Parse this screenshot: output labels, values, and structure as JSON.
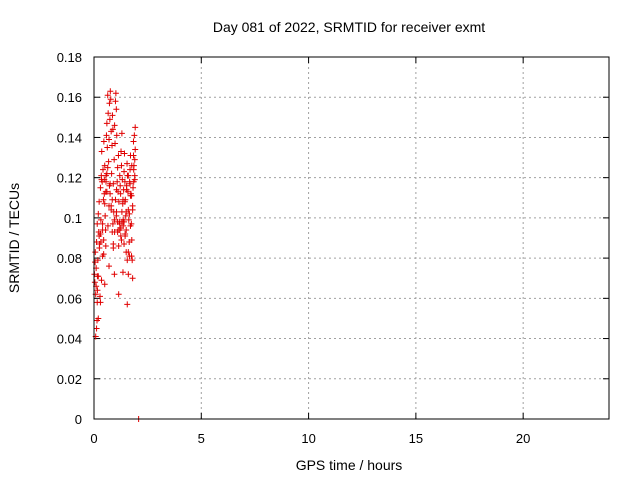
{
  "chart_data": {
    "type": "scatter",
    "title": "Day 081 of 2022, SRMTID for receiver exmt",
    "xlabel": "GPS time / hours",
    "ylabel": "SRMTID / TECUs",
    "xlim": [
      0,
      24
    ],
    "ylim": [
      0,
      0.18
    ],
    "xticks": [
      0,
      5,
      10,
      15,
      20
    ],
    "xtick_labels": [
      "0",
      "5",
      "10",
      "15",
      "20"
    ],
    "yticks": [
      0,
      0.02,
      0.04,
      0.06,
      0.08,
      0.1,
      0.12,
      0.14,
      0.16,
      0.18
    ],
    "ytick_labels": [
      "0",
      "0.02",
      "0.04",
      "0.06",
      "0.08",
      "0.1",
      "0.12",
      "0.14",
      "0.16",
      "0.18"
    ],
    "grid": true,
    "marker": "plus",
    "series": [
      {
        "name": "SRMTID",
        "color": "#e00000",
        "x": [
          0.02,
          0.04,
          0.06,
          0.08,
          0.1,
          0.12,
          0.14,
          0.16,
          0.18,
          0.2,
          0.22,
          0.24,
          0.26,
          0.28,
          0.3,
          0.32,
          0.34,
          0.36,
          0.38,
          0.4,
          0.42,
          0.44,
          0.46,
          0.48,
          0.5,
          0.52,
          0.54,
          0.56,
          0.58,
          0.6,
          0.62,
          0.64,
          0.66,
          0.68,
          0.7,
          0.72,
          0.74,
          0.76,
          0.78,
          0.8,
          0.82,
          0.84,
          0.86,
          0.88,
          0.9,
          0.92,
          0.94,
          0.96,
          0.98,
          1.0,
          1.02,
          1.04,
          1.06,
          1.08,
          1.1,
          1.12,
          1.14,
          1.16,
          1.18,
          1.2,
          1.22,
          1.24,
          1.26,
          1.28,
          1.3,
          1.32,
          1.34,
          1.36,
          1.38,
          1.4,
          1.42,
          1.44,
          1.46,
          1.48,
          1.5,
          1.52,
          1.54,
          1.56,
          1.58,
          1.6,
          1.62,
          1.64,
          1.66,
          1.68,
          1.7,
          1.72,
          1.74,
          1.76,
          1.78,
          1.8,
          1.82,
          1.84,
          1.86,
          1.88,
          1.9,
          1.92,
          0.05,
          0.1,
          0.15,
          0.2,
          0.25,
          0.3,
          0.35,
          0.4,
          0.45,
          0.5,
          0.55,
          0.6,
          0.65,
          0.7,
          0.75,
          0.8,
          0.85,
          0.9,
          0.95,
          1.0,
          1.05,
          1.1,
          1.15,
          1.2,
          1.25,
          1.3,
          1.35,
          1.4,
          1.45,
          1.5,
          1.55,
          1.6,
          1.65,
          1.7,
          1.75,
          1.8,
          1.85,
          1.9,
          0.08,
          0.16,
          0.24,
          0.32,
          0.4,
          0.48,
          0.56,
          0.64,
          0.72,
          0.8,
          0.88,
          0.96,
          1.04,
          1.12,
          1.2,
          1.28,
          1.36,
          1.44,
          1.52,
          1.6,
          1.68,
          1.76,
          1.84,
          1.92,
          0.12,
          0.3,
          0.5,
          0.7,
          0.9,
          1.1,
          1.3,
          1.5,
          1.7,
          1.9,
          0.2,
          0.45,
          0.95,
          1.15,
          1.35,
          1.55,
          1.75,
          0.15,
          0.6,
          0.85,
          1.25,
          1.45,
          1.65,
          1.85,
          0.35,
          0.55,
          0.75,
          1.05,
          1.4,
          1.6,
          1.8,
          2.08
        ],
        "y": [
          0.072,
          0.068,
          0.083,
          0.041,
          0.075,
          0.088,
          0.049,
          0.064,
          0.079,
          0.102,
          0.093,
          0.108,
          0.087,
          0.061,
          0.115,
          0.099,
          0.121,
          0.133,
          0.118,
          0.097,
          0.124,
          0.109,
          0.138,
          0.112,
          0.126,
          0.101,
          0.094,
          0.118,
          0.141,
          0.147,
          0.135,
          0.161,
          0.152,
          0.128,
          0.139,
          0.157,
          0.149,
          0.163,
          0.159,
          0.143,
          0.122,
          0.136,
          0.151,
          0.144,
          0.117,
          0.103,
          0.129,
          0.146,
          0.137,
          0.158,
          0.162,
          0.154,
          0.141,
          0.118,
          0.125,
          0.113,
          0.131,
          0.108,
          0.098,
          0.121,
          0.116,
          0.112,
          0.133,
          0.126,
          0.142,
          0.119,
          0.107,
          0.096,
          0.114,
          0.123,
          0.132,
          0.118,
          0.109,
          0.101,
          0.094,
          0.116,
          0.127,
          0.121,
          0.113,
          0.104,
          0.099,
          0.088,
          0.118,
          0.124,
          0.131,
          0.112,
          0.097,
          0.089,
          0.079,
          0.106,
          0.115,
          0.138,
          0.126,
          0.141,
          0.129,
          0.145,
          0.078,
          0.066,
          0.058,
          0.071,
          0.085,
          0.092,
          0.069,
          0.081,
          0.089,
          0.107,
          0.113,
          0.122,
          0.096,
          0.106,
          0.117,
          0.104,
          0.093,
          0.087,
          0.099,
          0.109,
          0.114,
          0.098,
          0.086,
          0.094,
          0.091,
          0.103,
          0.109,
          0.098,
          0.092,
          0.083,
          0.079,
          0.072,
          0.081,
          0.096,
          0.111,
          0.104,
          0.118,
          0.121,
          0.062,
          0.071,
          0.091,
          0.088,
          0.094,
          0.119,
          0.121,
          0.125,
          0.116,
          0.106,
          0.097,
          0.093,
          0.101,
          0.094,
          0.097,
          0.089,
          0.099,
          0.108,
          0.114,
          0.121,
          0.117,
          0.126,
          0.131,
          0.134,
          0.045,
          0.058,
          0.067,
          0.076,
          0.085,
          0.093,
          0.098,
          0.103,
          0.111,
          0.119,
          0.05,
          0.082,
          0.072,
          0.062,
          0.073,
          0.057,
          0.081,
          0.097,
          0.113,
          0.109,
          0.095,
          0.091,
          0.102,
          0.124,
          0.119,
          0.086,
          0.112,
          0.103,
          0.087,
          0.083,
          0.07,
          0.0
        ]
      }
    ]
  }
}
